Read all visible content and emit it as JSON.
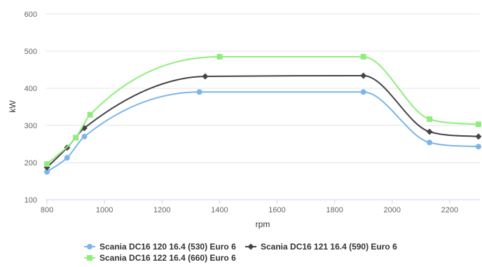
{
  "chart_data": {
    "type": "line",
    "title": "",
    "xlabel": "rpm",
    "ylabel": "kW",
    "xlim": [
      795,
      2305
    ],
    "ylim": [
      100,
      600
    ],
    "x_ticks": [
      800,
      1000,
      1200,
      1400,
      1600,
      1800,
      2000,
      2200
    ],
    "y_ticks": [
      100,
      200,
      300,
      400,
      500,
      600
    ],
    "grid": "horizontal",
    "legend_position": "bottom",
    "series": [
      {
        "name": "Scania DC16 120 16.4 (530) Euro 6",
        "color": "#7cb5ec",
        "marker": "circle",
        "points": [
          [
            800,
            175
          ],
          [
            870,
            213
          ],
          [
            930,
            270
          ],
          [
            1330,
            390
          ],
          [
            1900,
            390
          ],
          [
            2130,
            254
          ],
          [
            2300,
            243
          ]
        ]
      },
      {
        "name": "Scania DC16 121 16.4 (590) Euro 6",
        "color": "#434348",
        "marker": "diamond",
        "points": [
          [
            800,
            187
          ],
          [
            870,
            240
          ],
          [
            930,
            293
          ],
          [
            1350,
            432
          ],
          [
            1900,
            434
          ],
          [
            2130,
            283
          ],
          [
            2300,
            270
          ]
        ]
      },
      {
        "name": "Scania DC16 122 16.4 (660) Euro 6",
        "color": "#90ed7d",
        "marker": "square",
        "points": [
          [
            800,
            196
          ],
          [
            900,
            267
          ],
          [
            950,
            329
          ],
          [
            1400,
            485
          ],
          [
            1900,
            485
          ],
          [
            2130,
            317
          ],
          [
            2300,
            303
          ]
        ]
      }
    ]
  }
}
